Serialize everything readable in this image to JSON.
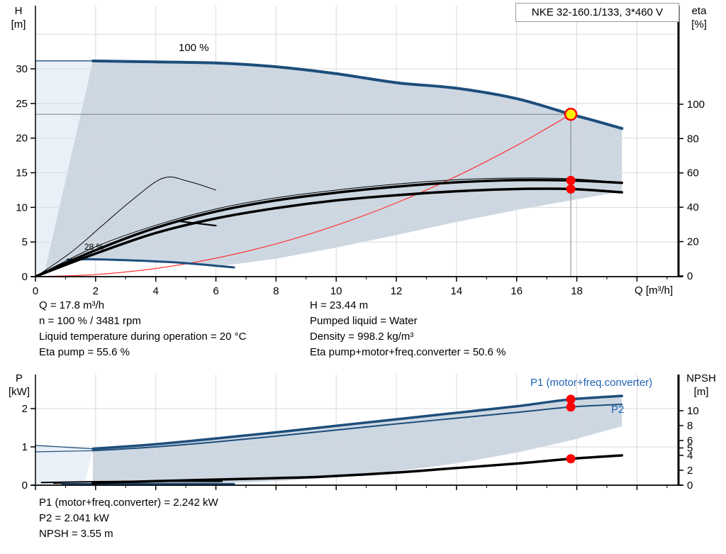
{
  "title_box": "NKE 32-160.1/133, 3*460 V",
  "labels": {
    "h": "H",
    "h_unit": "[m]",
    "eta": "eta",
    "eta_unit": "[%]",
    "p": "P",
    "p_unit": "[kW]",
    "npsh": "NPSH",
    "npsh_unit": "[m]",
    "q_axis": "Q [m³/h]",
    "speed_100": "100 %",
    "speed_min": "28 %",
    "p1_curve": "P1 (motor+freq.converter)",
    "p2_curve": "P2"
  },
  "info_top_left": [
    "Q = 17.8 m³/h",
    "n = 100 % / 3481 rpm",
    "Liquid temperature during operation = 20 °C",
    "Eta pump = 55.6 %"
  ],
  "info_top_right": [
    "H = 23.44 m",
    "Pumped liquid = Water",
    "Density = 998.2 kg/m³",
    "Eta pump+motor+freq.converter = 50.6 %"
  ],
  "info_bottom": [
    "P1 (motor+freq.converter) = 2.242 kW",
    "P2 = 2.041 kW",
    "NPSH = 3.55 m"
  ],
  "colors": {
    "curve_blue": "#1d4e7b",
    "label_blue": "#1f62b4",
    "shade_main": "#cdd7e2",
    "shade_pale": "#e9f0f8",
    "red_line": "#ff3333",
    "red_dot": "#ff0000",
    "yellow": "#ffef00",
    "grid": "#d9d9d9",
    "crosshair": "#808080",
    "black": "#000000",
    "axis": "#000000"
  },
  "duty_point": {
    "Q": 17.8,
    "H": 23.44,
    "eta_pump": 55.6,
    "eta_total": 50.6,
    "P1": 2.242,
    "P2": 2.041,
    "NPSH": 3.55,
    "speed_pct": 100,
    "rpm": 3481
  },
  "chart_data": [
    {
      "type": "line",
      "xlabel": "Q [m³/h]",
      "ylabel_left": "H [m]",
      "ylabel_right": "eta [%]",
      "axes": {
        "x_range": [
          0,
          21.4
        ],
        "y_left_range": [
          0,
          39.1
        ],
        "y_right_range": [
          0,
          157
        ],
        "x_tick_labels": [
          0,
          2,
          4,
          6,
          8,
          10,
          12,
          14,
          16,
          18
        ],
        "x_grid": [
          2,
          4,
          6,
          8,
          10,
          12,
          14,
          16,
          18,
          20
        ],
        "left_ticks": [
          0,
          5,
          10,
          15,
          20,
          25,
          30
        ],
        "left_grid": [
          5,
          10,
          15,
          20,
          25,
          30,
          35
        ],
        "right_ticks": [
          0,
          20,
          40,
          60,
          80,
          100
        ],
        "grid": true
      },
      "areas": [
        {
          "name": "operating-range-pale",
          "color": "shade_pale",
          "pts": [
            [
              0,
              31.15
            ],
            [
              1.91,
              31.15
            ],
            [
              0.28,
              0.2
            ],
            [
              0,
              0
            ]
          ]
        },
        {
          "name": "operating-range",
          "color": "shade_main",
          "pts": [
            [
              1.91,
              31.15
            ],
            [
              4,
              31.0
            ],
            [
              6,
              30.85
            ],
            [
              8,
              30.3
            ],
            [
              10,
              29.3
            ],
            [
              12,
              28.0
            ],
            [
              14,
              27.2
            ],
            [
              16,
              25.7
            ],
            [
              17.8,
              23.44
            ],
            [
              18.6,
              22.5
            ],
            [
              19.5,
              21.4
            ],
            [
              19.5,
              12.3
            ],
            [
              18.2,
              11.3
            ],
            [
              16.1,
              9.7
            ],
            [
              14,
              7.9
            ],
            [
              12,
              6.0
            ],
            [
              10,
              4.2
            ],
            [
              8,
              2.6
            ],
            [
              6.8,
              1.9
            ],
            [
              6.13,
              1.54
            ],
            [
              5,
              1.95
            ],
            [
              3.5,
              2.3
            ],
            [
              2,
              2.5
            ],
            [
              1.06,
              2.46
            ],
            [
              0.28,
              0.2
            ]
          ]
        }
      ],
      "crosshair": [
        {
          "name": "duty-hline",
          "pts": [
            [
              0,
              23.44
            ],
            [
              17.8,
              23.44
            ]
          ]
        },
        {
          "name": "duty-vline",
          "pts": [
            [
              17.8,
              23.44
            ],
            [
              17.8,
              0
            ]
          ]
        }
      ],
      "series": [
        {
          "name": "system-curve",
          "axis": "L",
          "color": "red_line",
          "w": 1.2,
          "pts": [
            [
              0,
              0
            ],
            [
              2,
              0.3
            ],
            [
              4,
              1.18
            ],
            [
              6,
              2.66
            ],
            [
              8,
              4.73
            ],
            [
              10,
              7.4
            ],
            [
              12,
              10.65
            ],
            [
              14,
              14.5
            ],
            [
              16,
              18.94
            ],
            [
              17.8,
              23.44
            ]
          ]
        },
        {
          "name": "head-100pct-ext",
          "axis": "L",
          "color": "curve_blue",
          "w": 1.3,
          "pts": [
            [
              0,
              31.15
            ],
            [
              1.91,
              31.15
            ]
          ]
        },
        {
          "name": "head-100pct",
          "axis": "L",
          "color": "curve_blue",
          "w": 4,
          "pts": [
            [
              1.91,
              31.15
            ],
            [
              4,
              31.0
            ],
            [
              6,
              30.85
            ],
            [
              8,
              30.3
            ],
            [
              10,
              29.3
            ],
            [
              12,
              28.0
            ],
            [
              14,
              27.2
            ],
            [
              16,
              25.7
            ],
            [
              17.8,
              23.44
            ],
            [
              18.6,
              22.5
            ],
            [
              19.5,
              21.4
            ]
          ]
        },
        {
          "name": "head-minspeed",
          "axis": "L",
          "color": "curve_blue",
          "w": 3,
          "pts": [
            [
              1.06,
              2.46
            ],
            [
              2,
              2.5
            ],
            [
              3.5,
              2.3
            ],
            [
              5,
              1.95
            ],
            [
              6.6,
              1.33
            ]
          ]
        },
        {
          "name": "eta-arc-thin",
          "axis": "R",
          "color": "black",
          "w": 1,
          "pts": [
            [
              0.05,
              0
            ],
            [
              1.2,
              14
            ],
            [
              2.2,
              29
            ],
            [
              3.2,
              44
            ],
            [
              4.25,
              57
            ],
            [
              5.1,
              55
            ],
            [
              6.0,
              50
            ]
          ]
        },
        {
          "name": "eta-tail",
          "axis": "R",
          "color": "black",
          "w": 2.2,
          "pts": [
            [
              4.7,
              32
            ],
            [
              6.0,
              29.3
            ]
          ]
        },
        {
          "name": "eta-upper-thin",
          "axis": "R",
          "color": "black",
          "w": 1,
          "pts": [
            [
              0.05,
              0
            ],
            [
              2,
              17
            ],
            [
              4,
              29.5
            ],
            [
              6,
              39
            ],
            [
              8,
              45.5
            ],
            [
              10,
              50
            ],
            [
              12,
              53.5
            ],
            [
              14,
              56
            ],
            [
              16,
              57
            ],
            [
              17.8,
              56.6
            ],
            [
              19.5,
              54.5
            ]
          ]
        },
        {
          "name": "eta-pump",
          "axis": "R",
          "color": "black",
          "w": 3.5,
          "pts": [
            [
              0.05,
              0
            ],
            [
              2,
              15
            ],
            [
              4,
              28
            ],
            [
              6,
              37.5
            ],
            [
              8,
              44
            ],
            [
              10,
              48.5
            ],
            [
              12,
              52
            ],
            [
              14,
              54.5
            ],
            [
              16,
              55.8
            ],
            [
              17.8,
              55.6
            ],
            [
              19.5,
              54.2
            ]
          ]
        },
        {
          "name": "eta-pump-motor-freq",
          "axis": "R",
          "color": "black",
          "w": 3.5,
          "pts": [
            [
              0.05,
              0
            ],
            [
              2,
              13
            ],
            [
              4,
              25
            ],
            [
              6,
              33.5
            ],
            [
              8,
              39.5
            ],
            [
              10,
              44
            ],
            [
              12,
              47
            ],
            [
              14,
              49.3
            ],
            [
              16,
              50.6
            ],
            [
              17.8,
              50.6
            ],
            [
              19.5,
              48.7
            ]
          ]
        }
      ],
      "markers": [
        {
          "name": "duty-point",
          "q": 17.8,
          "v": 23.44,
          "axis": "L",
          "style": "duty"
        },
        {
          "name": "eta-pump-dot",
          "q": 17.8,
          "v": 55.6,
          "axis": "R",
          "style": "dot"
        },
        {
          "name": "eta-total-dot",
          "q": 17.8,
          "v": 50.6,
          "axis": "R",
          "style": "dot"
        }
      ]
    },
    {
      "type": "line",
      "xlabel": "",
      "ylabel_left": "P [kW]",
      "ylabel_right": "NPSH [m]",
      "axes": {
        "x_range": [
          0,
          21.4
        ],
        "y_left_range": [
          0,
          2.89
        ],
        "y_right_range": [
          0,
          14.9
        ],
        "x_tick_labels": [],
        "x_grid": [
          2,
          4,
          6,
          8,
          10,
          12,
          14,
          16,
          18,
          20
        ],
        "left_ticks": [
          0,
          1,
          2
        ],
        "left_grid": [
          1,
          2
        ],
        "right_ticks": [
          0,
          2,
          4,
          5,
          6,
          8,
          10
        ],
        "grid": true
      },
      "areas": [
        {
          "name": "power-range-pale",
          "color": "shade_pale",
          "pts": [
            [
              0,
              1.04
            ],
            [
              1.91,
              0.95
            ],
            [
              1.75,
              0.4
            ],
            [
              1.62,
              0.02
            ],
            [
              0,
              0.02
            ]
          ]
        },
        {
          "name": "power-range",
          "color": "shade_main",
          "pts": [
            [
              1.91,
              0.95
            ],
            [
              4,
              1.07
            ],
            [
              6,
              1.22
            ],
            [
              8,
              1.38
            ],
            [
              10,
              1.55
            ],
            [
              12,
              1.72
            ],
            [
              14,
              1.89
            ],
            [
              16,
              2.06
            ],
            [
              17.8,
              2.242
            ],
            [
              19.5,
              2.33
            ],
            [
              19.5,
              1.54
            ],
            [
              17.8,
              1.17
            ],
            [
              16,
              0.85
            ],
            [
              14,
              0.57
            ],
            [
              12,
              0.36
            ],
            [
              10,
              0.21
            ],
            [
              8,
              0.107
            ],
            [
              6,
              0.045
            ],
            [
              4,
              0.015
            ],
            [
              2.6,
              0.006
            ],
            [
              1.91,
              0.02
            ]
          ]
        }
      ],
      "crosshair": [],
      "series": [
        {
          "name": "p2-ext",
          "axis": "L",
          "color": "curve_blue",
          "w": 1.2,
          "pts": [
            [
              0,
              0.87
            ],
            [
              1.91,
              0.9
            ]
          ]
        },
        {
          "name": "p2",
          "axis": "L",
          "color": "curve_blue",
          "w": 2,
          "pts": [
            [
              1.91,
              0.9
            ],
            [
              4,
              1.0
            ],
            [
              6,
              1.13
            ],
            [
              8,
              1.28
            ],
            [
              10,
              1.44
            ],
            [
              12,
              1.6
            ],
            [
              14,
              1.75
            ],
            [
              16,
              1.9
            ],
            [
              17.8,
              2.041
            ],
            [
              19.5,
              2.11
            ]
          ]
        },
        {
          "name": "p1-ext",
          "axis": "L",
          "color": "curve_blue",
          "w": 1.2,
          "pts": [
            [
              0,
              1.04
            ],
            [
              1.91,
              0.95
            ]
          ]
        },
        {
          "name": "p1",
          "axis": "L",
          "color": "curve_blue",
          "w": 3.5,
          "pts": [
            [
              1.91,
              0.95
            ],
            [
              4,
              1.07
            ],
            [
              6,
              1.22
            ],
            [
              8,
              1.38
            ],
            [
              10,
              1.55
            ],
            [
              12,
              1.72
            ],
            [
              14,
              1.89
            ],
            [
              16,
              2.06
            ],
            [
              17.8,
              2.242
            ],
            [
              19.5,
              2.33
            ]
          ]
        },
        {
          "name": "p-minspeed-a",
          "axis": "L",
          "color": "black",
          "w": 2,
          "pts": [
            [
              0.2,
              0.07
            ],
            [
              3,
              0.1
            ],
            [
              6.2,
              0.1
            ]
          ]
        },
        {
          "name": "p-minspeed-b",
          "axis": "L",
          "color": "black",
          "w": 1.2,
          "pts": [
            [
              0.6,
              0.045
            ],
            [
              6.1,
              0.05
            ]
          ]
        },
        {
          "name": "p-minspeed-blue",
          "axis": "L",
          "color": "curve_blue",
          "w": 3,
          "pts": [
            [
              0.9,
              0.02
            ],
            [
              6.6,
              0.03
            ]
          ]
        },
        {
          "name": "npsh",
          "axis": "R",
          "color": "black",
          "w": 3.5,
          "pts": [
            [
              1.91,
              0.28
            ],
            [
              4,
              0.55
            ],
            [
              6,
              0.75
            ],
            [
              8,
              0.95
            ],
            [
              9.55,
              1.14
            ],
            [
              12,
              1.7
            ],
            [
              13.9,
              2.28
            ],
            [
              16,
              2.9
            ],
            [
              17.8,
              3.55
            ],
            [
              19.5,
              4.0
            ]
          ]
        }
      ],
      "markers": [
        {
          "name": "p1-dot",
          "q": 17.8,
          "v": 2.242,
          "axis": "L",
          "style": "dot"
        },
        {
          "name": "p2-dot",
          "q": 17.8,
          "v": 2.041,
          "axis": "L",
          "style": "dot"
        },
        {
          "name": "npsh-dot",
          "q": 17.8,
          "v": 3.55,
          "axis": "R",
          "style": "dot"
        }
      ]
    }
  ]
}
